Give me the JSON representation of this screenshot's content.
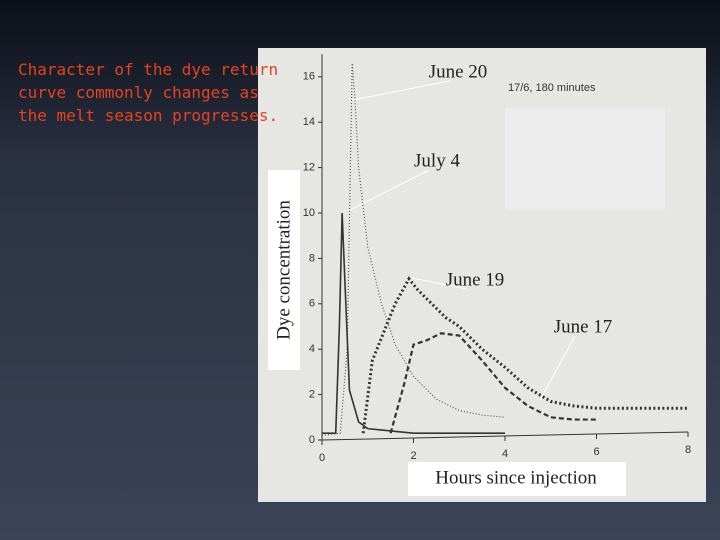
{
  "slide_text": "Character of the dye return curve commonly changes as the melt season progresses.",
  "chart_data": {
    "type": "line",
    "xlabel": "Hours since injection",
    "ylabel": "Dye concentration",
    "legend_note": "17/6, 180 minutes",
    "xlim": [
      0,
      8
    ],
    "ylim": [
      0,
      17
    ],
    "xticks": [
      0,
      2,
      4,
      6,
      8
    ],
    "yticks": [
      0,
      2,
      4,
      6,
      8,
      10,
      12,
      14,
      16
    ],
    "series": [
      {
        "name": "June 20",
        "color": "#555555",
        "style": "thin-dotted",
        "x": [
          0,
          0.4,
          0.55,
          0.62,
          0.66,
          0.72,
          0.8,
          1.0,
          1.3,
          1.6,
          2.0,
          2.5,
          3.0,
          3.5,
          4.0
        ],
        "values": [
          0.2,
          0.3,
          4,
          12,
          16.6,
          15,
          12,
          8.5,
          6,
          4.2,
          2.8,
          1.8,
          1.3,
          1.1,
          1
        ]
      },
      {
        "name": "July 4",
        "color": "#333333",
        "style": "solid",
        "x": [
          0,
          0.3,
          0.38,
          0.44,
          0.5,
          0.6,
          0.8,
          1.0,
          1.5,
          2.0,
          3.0,
          4.0
        ],
        "values": [
          0.3,
          0.3,
          5,
          10,
          7,
          2.2,
          0.8,
          0.5,
          0.4,
          0.3,
          0.3,
          0.3
        ]
      },
      {
        "name": "June 19",
        "color": "#333333",
        "style": "thick-dotted",
        "x": [
          0.9,
          1.1,
          1.4,
          1.6,
          1.9,
          2.1,
          2.4,
          2.7,
          3.0,
          3.5,
          4.0,
          4.5,
          5.0,
          5.5,
          6.0,
          7.0,
          8.0
        ],
        "values": [
          0.3,
          3.5,
          5,
          6,
          7.1,
          6.6,
          6,
          5.4,
          5,
          4,
          3.2,
          2.3,
          1.7,
          1.5,
          1.4,
          1.4,
          1.4
        ]
      },
      {
        "name": "June 17",
        "color": "#333333",
        "style": "dashed",
        "x": [
          1.5,
          1.8,
          2.0,
          2.3,
          2.6,
          3.0,
          3.5,
          4.0,
          4.5,
          5.0,
          5.5,
          6.0
        ],
        "values": [
          0.3,
          2.5,
          4.2,
          4.4,
          4.7,
          4.6,
          3.5,
          2.3,
          1.5,
          1.0,
          0.9,
          0.9
        ]
      }
    ]
  }
}
